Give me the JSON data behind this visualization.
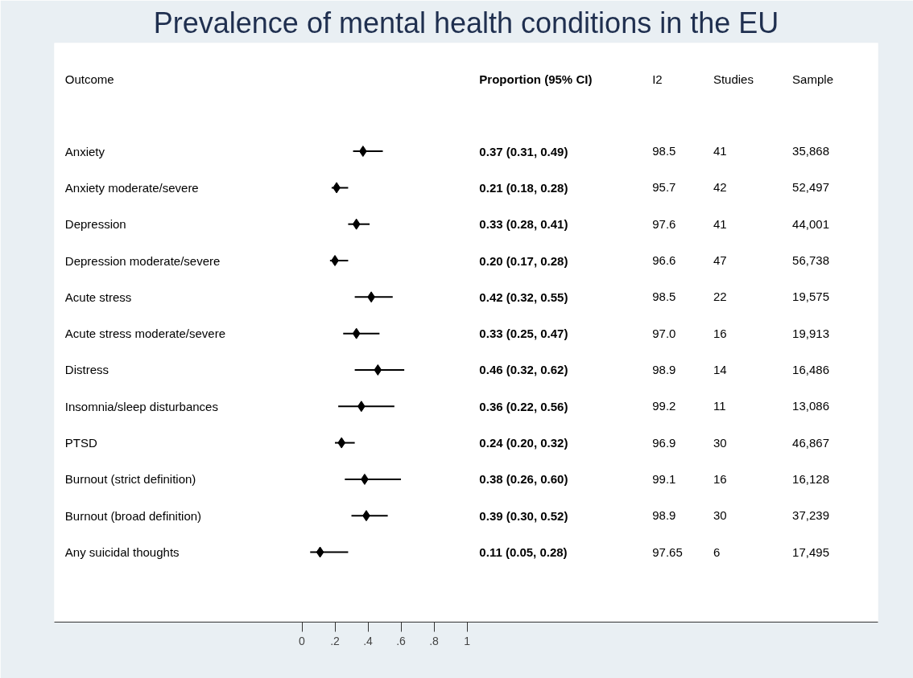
{
  "chart_data": {
    "type": "scatter",
    "orientation": "horizontal",
    "title": "Prevalence of mental health conditions in the EU",
    "ylabel": "Outcome",
    "categories": [
      "Anxiety",
      "Anxiety moderate/severe",
      "Depression",
      "Depression moderate/severe",
      "Acute stress",
      "Acute stress moderate/severe",
      "Distress",
      "Insomnia/sleep disturbances",
      "PTSD",
      "Burnout (strict definition)",
      "Burnout (broad definition)",
      "Any suicidal thoughts"
    ],
    "xlim": [
      -1.5,
      3.49
    ],
    "xticks": [
      {
        "value": 0,
        "label": "0"
      },
      {
        "value": 0.2,
        "label": ".2"
      },
      {
        "value": 0.4,
        "label": ".4"
      },
      {
        "value": 0.6,
        "label": ".6"
      },
      {
        "value": 0.8,
        "label": ".8"
      },
      {
        "value": 1,
        "label": "1"
      }
    ],
    "marker": "diamond",
    "grid": false,
    "series": [
      {
        "color": "#000000",
        "values": [
          0.37,
          0.21,
          0.33,
          0.2,
          0.42,
          0.33,
          0.46,
          0.36,
          0.24,
          0.38,
          0.39,
          0.11
        ],
        "errors": [
          [
            0.31,
            0.49
          ],
          [
            0.18,
            0.28
          ],
          [
            0.28,
            0.41
          ],
          [
            0.17,
            0.28
          ],
          [
            0.32,
            0.55
          ],
          [
            0.25,
            0.47
          ],
          [
            0.32,
            0.62
          ],
          [
            0.22,
            0.56
          ],
          [
            0.2,
            0.32
          ],
          [
            0.26,
            0.6
          ],
          [
            0.3,
            0.52
          ],
          [
            0.05,
            0.28
          ]
        ]
      }
    ],
    "annotations": [
      "Proportion (95% CI)",
      "I2",
      "Studies",
      "Sample",
      "0.37 (0.31, 0.49)",
      "98.5",
      "41",
      "35,868",
      "0.21 (0.18, 0.28)",
      "95.7",
      "42",
      "52,497",
      "0.33 (0.28, 0.41)",
      "97.6",
      "41",
      "44,001",
      "0.20 (0.17, 0.28)",
      "96.6",
      "47",
      "56,738",
      "0.42 (0.32, 0.55)",
      "98.5",
      "22",
      "19,575",
      "0.33 (0.25, 0.47)",
      "97.0",
      "16",
      "19,913",
      "0.46 (0.32, 0.62)",
      "98.9",
      "14",
      "16,486",
      "0.36 (0.22, 0.56)",
      "99.2",
      "11",
      "13,086",
      "0.24 (0.20, 0.32)",
      "96.9",
      "30",
      "46,867",
      "0.38 (0.26, 0.60)",
      "99.1",
      "16",
      "16,128",
      "0.39 (0.30, 0.52)",
      "98.9",
      "30",
      "37,239",
      "0.11 (0.05, 0.28)",
      "97.65",
      "6",
      "17,495"
    ]
  }
}
